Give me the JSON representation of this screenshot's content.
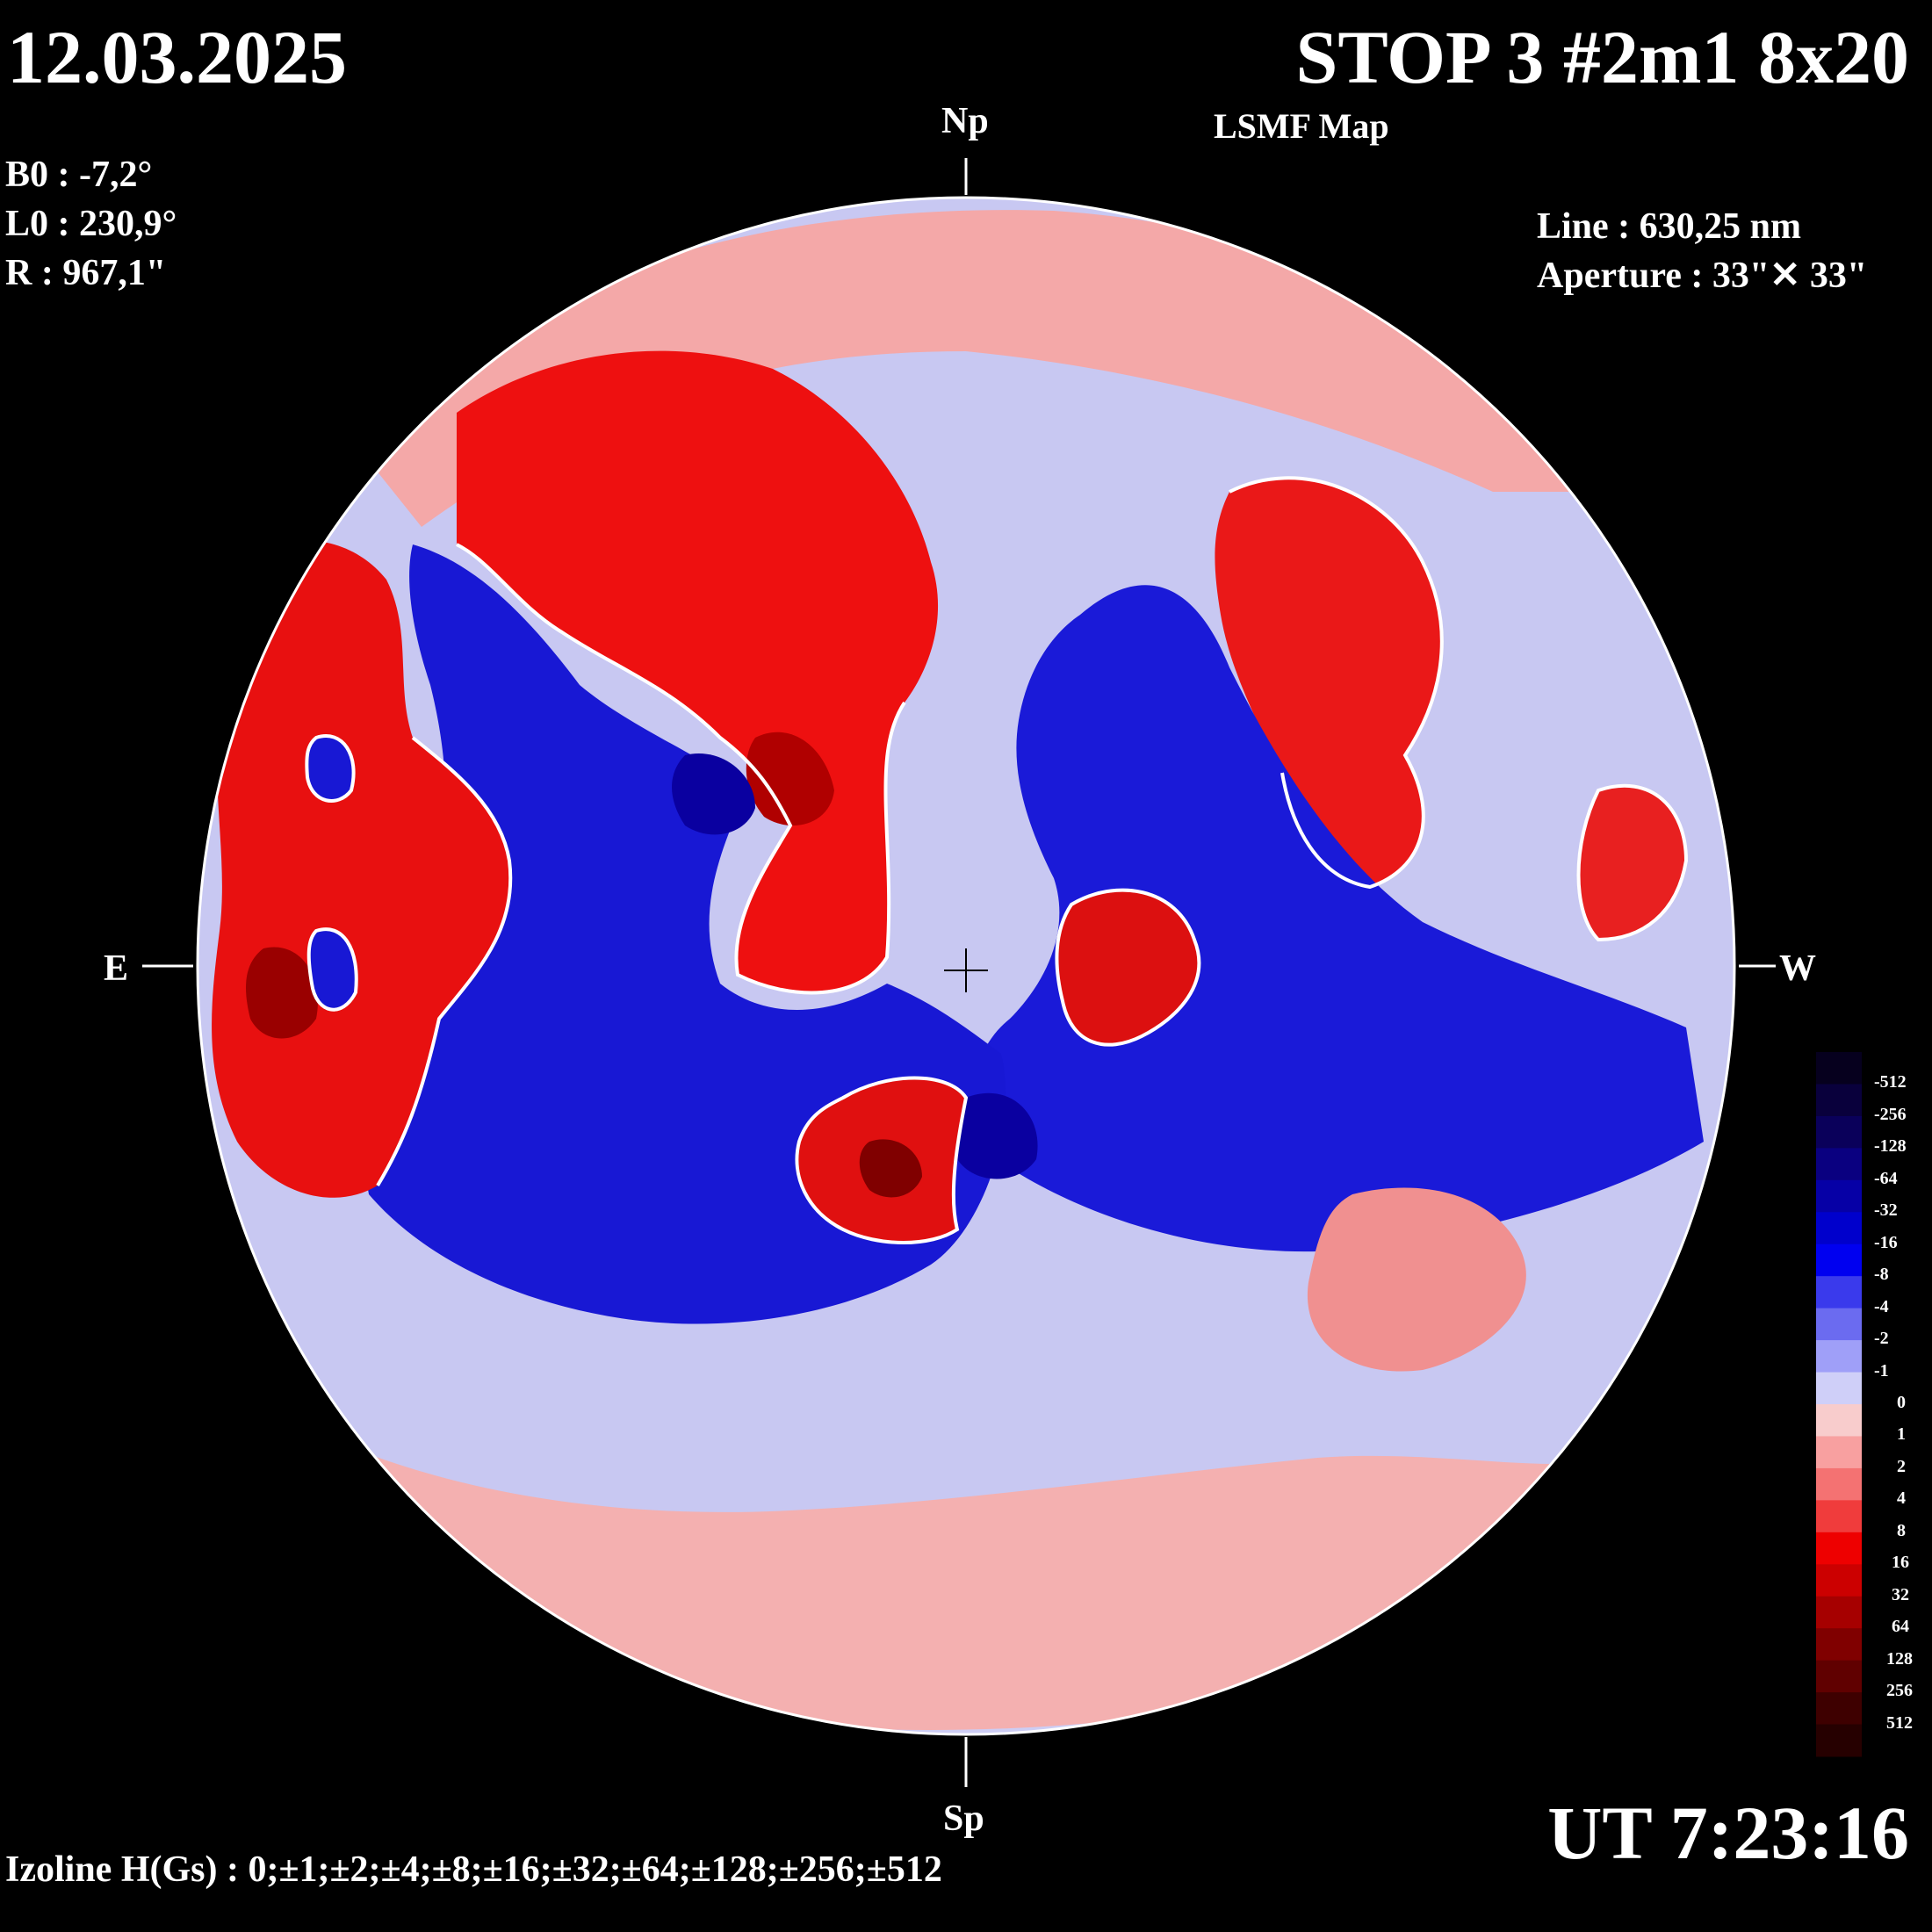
{
  "header": {
    "date": "12.03.2025",
    "title": "STOP 3 #2m1 8x20",
    "subtitle": "LSMF  Map"
  },
  "params": {
    "b0": "B0 : -7,2°",
    "l0": "L0 : 230,9°",
    "r": "R  : 967,1\""
  },
  "instrument": {
    "line": "Line :  630,25 nm",
    "aperture": "Aperture : 33\"✕ 33\""
  },
  "directions": {
    "north": "Np",
    "south": "Sp",
    "east": "E",
    "west": "W"
  },
  "time": "UT 7:23:16",
  "izoline": "Izoline H(Gs) : 0;±1;±2;±4;±8;±16;±32;±64;±128;±256;±512",
  "colorbar": {
    "levels": [
      "-512",
      "-256",
      "-128",
      "-64",
      "-32",
      "-16",
      "-8",
      "-4",
      "-2",
      "-1",
      "0",
      "1",
      "2",
      "4",
      "8",
      "16",
      "32",
      "64",
      "128",
      "256",
      "512"
    ],
    "colors": [
      "#06001e",
      "#09003c",
      "#0a005a",
      "#0a0080",
      "#0600a6",
      "#0000cc",
      "#0000f0",
      "#3a3aec",
      "#6b6bf0",
      "#9f9ff8",
      "#cfcff8",
      "#f8cccc",
      "#f8a0a0",
      "#f47272",
      "#f03c3c",
      "#ee0000",
      "#cc0000",
      "#a60000",
      "#800000",
      "#600000",
      "#3e0000",
      "#260000"
    ]
  },
  "field": {
    "polarity_colors": {
      "positive": "#ee0a0a",
      "negative": "#1414d8",
      "neutral_pos": "#f8c4c4",
      "neutral_neg": "#c4c4f4"
    }
  }
}
